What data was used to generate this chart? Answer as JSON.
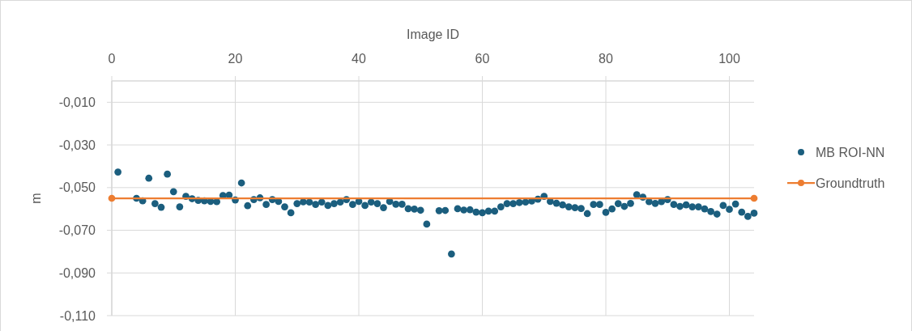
{
  "chart_data": {
    "type": "scatter",
    "xlabel": "Image ID",
    "ylabel": "m",
    "xlim": [
      0,
      104
    ],
    "xticks": [
      0,
      20,
      40,
      60,
      80,
      100
    ],
    "ylim": [
      -0.11,
      0
    ],
    "yticks": [
      {
        "value": -0.01,
        "label": "-0,010"
      },
      {
        "value": -0.03,
        "label": "-0,030"
      },
      {
        "value": -0.05,
        "label": "-0,050"
      },
      {
        "value": -0.07,
        "label": "-0,070"
      },
      {
        "value": -0.09,
        "label": "-0,090"
      },
      {
        "value": -0.11,
        "label": "-0,110"
      }
    ],
    "grid": true,
    "legend": "right",
    "marker": "circle",
    "series": [
      {
        "name": "MB ROI-NN",
        "color": "#1b5e7e",
        "x": [
          1,
          4,
          5,
          6,
          7,
          8,
          9,
          10,
          11,
          12,
          13,
          14,
          15,
          16,
          17,
          18,
          19,
          20,
          21,
          22,
          23,
          24,
          25,
          26,
          27,
          28,
          29,
          30,
          31,
          32,
          33,
          34,
          35,
          36,
          37,
          38,
          39,
          40,
          41,
          42,
          43,
          44,
          45,
          46,
          47,
          48,
          49,
          50,
          51,
          53,
          54,
          55,
          56,
          57,
          58,
          59,
          60,
          61,
          62,
          63,
          64,
          65,
          66,
          67,
          68,
          69,
          70,
          71,
          72,
          73,
          74,
          75,
          76,
          77,
          78,
          79,
          80,
          81,
          82,
          83,
          84,
          85,
          86,
          87,
          88,
          89,
          90,
          91,
          92,
          93,
          94,
          95,
          96,
          97,
          98,
          99,
          100,
          101,
          102,
          103,
          104
        ],
        "values": [
          -0.0427,
          -0.055,
          -0.0562,
          -0.0456,
          -0.0575,
          -0.0592,
          -0.0437,
          -0.0519,
          -0.059,
          -0.0541,
          -0.0552,
          -0.056,
          -0.0562,
          -0.0565,
          -0.0566,
          -0.0537,
          -0.0535,
          -0.0558,
          -0.0478,
          -0.0585,
          -0.0556,
          -0.0548,
          -0.0579,
          -0.0556,
          -0.0565,
          -0.059,
          -0.0618,
          -0.0575,
          -0.0567,
          -0.0568,
          -0.0579,
          -0.0568,
          -0.0584,
          -0.0575,
          -0.0568,
          -0.0556,
          -0.0579,
          -0.0565,
          -0.0584,
          -0.0568,
          -0.0575,
          -0.0594,
          -0.0565,
          -0.0578,
          -0.0578,
          -0.0599,
          -0.0601,
          -0.0606,
          -0.0671,
          -0.0608,
          -0.0607,
          -0.0811,
          -0.0599,
          -0.0605,
          -0.0604,
          -0.0615,
          -0.0618,
          -0.061,
          -0.061,
          -0.059,
          -0.0575,
          -0.0575,
          -0.057,
          -0.0568,
          -0.0563,
          -0.0554,
          -0.0541,
          -0.0565,
          -0.0573,
          -0.0581,
          -0.059,
          -0.0594,
          -0.0598,
          -0.0622,
          -0.0579,
          -0.0579,
          -0.0616,
          -0.06,
          -0.0575,
          -0.0588,
          -0.0574,
          -0.0533,
          -0.0545,
          -0.0566,
          -0.0574,
          -0.0566,
          -0.0556,
          -0.0579,
          -0.0588,
          -0.0581,
          -0.059,
          -0.059,
          -0.06,
          -0.0612,
          -0.0624,
          -0.0584,
          -0.0602,
          -0.0577,
          -0.0615,
          -0.0635,
          -0.062
        ]
      },
      {
        "name": "Groundtruth",
        "type": "line",
        "color": "#ed7d31",
        "marker": "circle",
        "line_style": "solid",
        "x": [
          0,
          104
        ],
        "values": [
          -0.055,
          -0.055
        ]
      }
    ]
  }
}
